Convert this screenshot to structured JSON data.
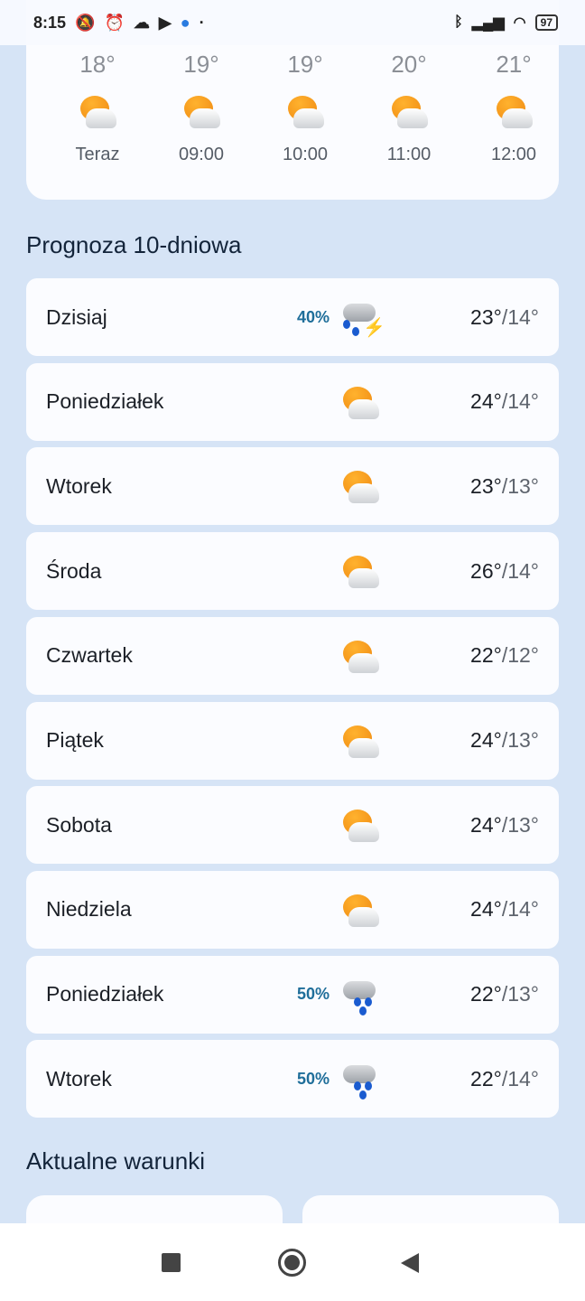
{
  "status_bar": {
    "time": "8:15",
    "battery": "97",
    "icons": [
      "mute-icon",
      "alarm-icon",
      "cloud-icon",
      "youtube-icon",
      "app-icon",
      "bluetooth-icon",
      "signal-icon",
      "wifi-icon",
      "battery-icon"
    ]
  },
  "hourly": [
    {
      "temp": "18°",
      "time": "Teraz",
      "icon": "partly-cloudy"
    },
    {
      "temp": "19°",
      "time": "09:00",
      "icon": "partly-cloudy"
    },
    {
      "temp": "19°",
      "time": "10:00",
      "icon": "partly-cloudy"
    },
    {
      "temp": "20°",
      "time": "11:00",
      "icon": "partly-cloudy"
    },
    {
      "temp": "21°",
      "time": "12:00",
      "icon": "partly-cloudy"
    }
  ],
  "forecast_title": "Prognoza 10-dniowa",
  "forecast": [
    {
      "day": "Dzisiaj",
      "precip": "40%",
      "icon": "thunderstorm-rain",
      "high": "23°",
      "low": "/14°"
    },
    {
      "day": "Poniedziałek",
      "precip": "",
      "icon": "partly-cloudy",
      "high": "24°",
      "low": "/14°"
    },
    {
      "day": "Wtorek",
      "precip": "",
      "icon": "partly-cloudy",
      "high": "23°",
      "low": "/13°"
    },
    {
      "day": "Środa",
      "precip": "",
      "icon": "partly-cloudy",
      "high": "26°",
      "low": "/14°"
    },
    {
      "day": "Czwartek",
      "precip": "",
      "icon": "partly-cloudy",
      "high": "22°",
      "low": "/12°"
    },
    {
      "day": "Piątek",
      "precip": "",
      "icon": "partly-cloudy",
      "high": "24°",
      "low": "/13°"
    },
    {
      "day": "Sobota",
      "precip": "",
      "icon": "partly-cloudy",
      "high": "24°",
      "low": "/13°"
    },
    {
      "day": "Niedziela",
      "precip": "",
      "icon": "partly-cloudy",
      "high": "24°",
      "low": "/14°"
    },
    {
      "day": "Poniedziałek",
      "precip": "50%",
      "icon": "rain",
      "high": "22°",
      "low": "/13°"
    },
    {
      "day": "Wtorek",
      "precip": "50%",
      "icon": "rain",
      "high": "22°",
      "low": "/14°"
    }
  ],
  "conditions_title": "Aktualne warunki",
  "colors": {
    "background": "#d6e4f6",
    "card": "#fbfcff",
    "precip": "#1f6e9a",
    "sun": "#f08a12",
    "rain_drop": "#1a5bd0"
  }
}
